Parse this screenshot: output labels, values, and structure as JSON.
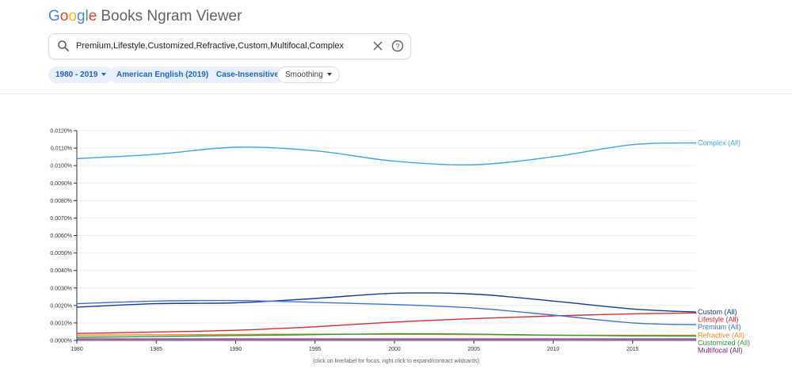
{
  "header": {
    "logo_letters": [
      "G",
      "o",
      "o",
      "g",
      "l",
      "e"
    ],
    "product": "Books Ngram Viewer"
  },
  "search": {
    "query": "Premium,Lifestyle,Customized,Refractive,Custom,Multifocal,Complex",
    "icons": {
      "search": "search-icon",
      "clear": "close-icon",
      "help": "help-icon"
    }
  },
  "filters": {
    "years": "1980 - 2019",
    "corpus": "American English (2019)",
    "case": "Case-Insensitive",
    "smoothing": "Smoothing"
  },
  "colors": {
    "chip_bg": "#e8f0fe",
    "chip_text": "#1967d2",
    "grid": "#eeeeee",
    "axis": "#333333"
  },
  "footnote": "(click on line/label for focus, right click to expand/contract wildcards)",
  "chart_data": {
    "type": "line",
    "x": [
      1980,
      1985,
      1990,
      1995,
      2000,
      2005,
      2010,
      2015,
      2019
    ],
    "xticks": [
      "1980",
      "1985",
      "1990",
      "1995",
      "2000",
      "2005",
      "2010",
      "2015"
    ],
    "yticks": [
      "0.0000%",
      "0.0010%",
      "0.0020%",
      "0.0030%",
      "0.0040%",
      "0.0050%",
      "0.0060%",
      "0.0070%",
      "0.0080%",
      "0.0090%",
      "0.0100%",
      "0.0110%",
      "0.0120%"
    ],
    "xlim": [
      1980,
      2019
    ],
    "ylim": [
      0,
      0.012
    ],
    "grid": true,
    "series": [
      {
        "name": "Complex (All)",
        "color": "#3fa6ea",
        "values": [
          0.0104,
          0.01065,
          0.01105,
          0.01085,
          0.01025,
          0.01005,
          0.0105,
          0.0112,
          0.0113
        ]
      },
      {
        "name": "Custom (All)",
        "color": "#1a3a9a",
        "values": [
          0.0019,
          0.0021,
          0.00215,
          0.0024,
          0.0027,
          0.00265,
          0.00225,
          0.0018,
          0.00162
        ]
      },
      {
        "name": "Lifestyle (All)",
        "color": "#d92d2d",
        "values": [
          0.0004,
          0.00048,
          0.00058,
          0.00078,
          0.00105,
          0.00125,
          0.0014,
          0.00152,
          0.00157
        ]
      },
      {
        "name": "Premium (All)",
        "color": "#3a74d8",
        "values": [
          0.0021,
          0.00225,
          0.00228,
          0.00218,
          0.00205,
          0.00185,
          0.00145,
          0.001,
          0.0009
        ]
      },
      {
        "name": "Refractive (All)",
        "color": "#f08a24",
        "values": [
          0.0003,
          0.00032,
          0.00034,
          0.00036,
          0.00035,
          0.00033,
          0.0003,
          0.0003,
          0.0003
        ]
      },
      {
        "name": "Customized (All)",
        "color": "#2e9a3e",
        "values": [
          0.00018,
          0.00022,
          0.00028,
          0.00033,
          0.00038,
          0.00036,
          0.0003,
          0.00026,
          0.00025
        ]
      },
      {
        "name": "Multifocal (All)",
        "color": "#8e1c8e",
        "values": [
          8e-05,
          8e-05,
          8e-05,
          8e-05,
          8e-05,
          8e-05,
          8e-05,
          8e-05,
          8e-05
        ]
      }
    ]
  }
}
